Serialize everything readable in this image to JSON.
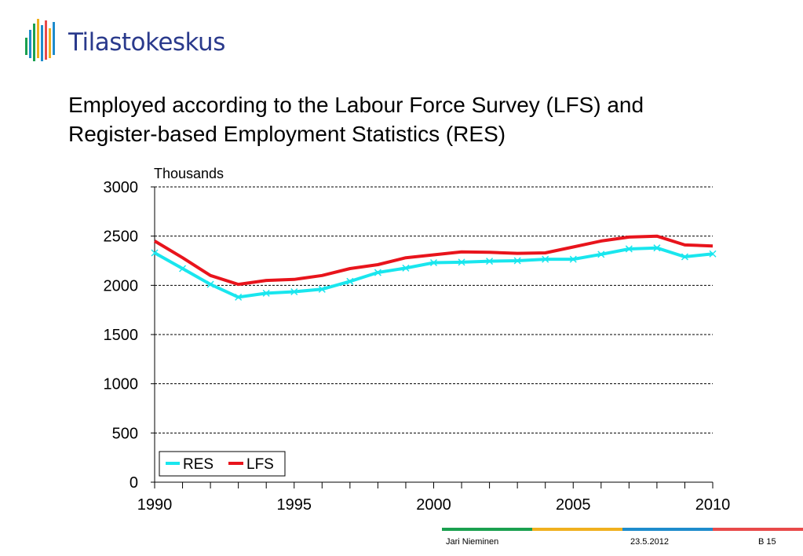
{
  "logo": {
    "text": "Tilastokeskus"
  },
  "title_lines": [
    "Employed according to the Labour Force Survey (LFS) and",
    "Register-based Employment Statistics (RES)"
  ],
  "footer": {
    "author": "Jari Nieminen",
    "date": "23.5.2012",
    "page": "B 15"
  },
  "colors": {
    "res": "#19e6ee",
    "lfs": "#e8141c",
    "footer_bar": [
      "#1aa050",
      "#f0b01e",
      "#1e8ccc",
      "#e84a4a"
    ]
  },
  "chart_data": {
    "type": "line",
    "ylabel": "Thousands",
    "ylim": [
      0,
      3000
    ],
    "yticks": [
      0,
      500,
      1000,
      1500,
      2000,
      2500,
      3000
    ],
    "xlim": [
      1990,
      2010
    ],
    "xticks": [
      1990,
      1995,
      2000,
      2005,
      2010
    ],
    "grid": true,
    "legend_position": "bottom-left",
    "x": [
      1990,
      1991,
      1992,
      1993,
      1994,
      1995,
      1996,
      1997,
      1998,
      1999,
      2000,
      2001,
      2002,
      2003,
      2004,
      2005,
      2006,
      2007,
      2008,
      2009,
      2010
    ],
    "series": [
      {
        "name": "RES",
        "color": "#19e6ee",
        "marker": "x",
        "values": [
          2330,
          2170,
          2010,
          1880,
          1920,
          1935,
          1960,
          2040,
          2130,
          2175,
          2230,
          2235,
          2245,
          2250,
          2265,
          2265,
          2315,
          2370,
          2380,
          2290,
          2320
        ]
      },
      {
        "name": "LFS",
        "color": "#e8141c",
        "marker": "none",
        "values": [
          2450,
          2280,
          2100,
          2010,
          2050,
          2060,
          2100,
          2170,
          2210,
          2280,
          2310,
          2340,
          2335,
          2325,
          2330,
          2390,
          2450,
          2490,
          2500,
          2410,
          2400
        ]
      }
    ]
  }
}
